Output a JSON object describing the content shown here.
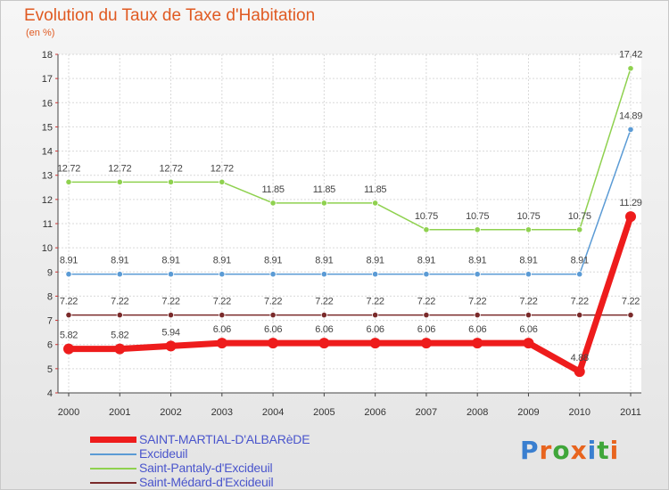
{
  "title": "Evolution du Taux de Taxe d'Habitation",
  "unit": "(en %)",
  "logo": {
    "text": "Proxiti",
    "letter_colors": [
      "#3a7fd0",
      "#e8641e",
      "#3fa63a",
      "#e8641e",
      "#3a7fd0",
      "#3fa63a",
      "#e8641e"
    ]
  },
  "chart_data": {
    "type": "line",
    "title": "Evolution du Taux de Taxe d'Habitation",
    "ylabel": "(en %)",
    "xlabel": "",
    "categories": [
      "2000",
      "2001",
      "2002",
      "2003",
      "2004",
      "2005",
      "2006",
      "2007",
      "2008",
      "2009",
      "2010",
      "2011"
    ],
    "ylim": [
      4,
      18
    ],
    "yticks": [
      4,
      5,
      6,
      7,
      8,
      9,
      10,
      11,
      12,
      13,
      14,
      15,
      16,
      17,
      18
    ],
    "grid": true,
    "series": [
      {
        "name": "Saint-Médard-d'Excideuil",
        "color": "#7a2a2a",
        "values": [
          7.22,
          7.22,
          7.22,
          7.22,
          7.22,
          7.22,
          7.22,
          7.22,
          7.22,
          7.22,
          7.22,
          7.22
        ],
        "labels": [
          "7.22",
          "7.22",
          "7.22",
          "7.22",
          "7.22",
          "7.22",
          "7.22",
          "7.22",
          "7.22",
          "7.22",
          "7.22",
          "7.22"
        ]
      },
      {
        "name": "Excideuil",
        "color": "#5b9bd5",
        "values": [
          8.91,
          8.91,
          8.91,
          8.91,
          8.91,
          8.91,
          8.91,
          8.91,
          8.91,
          8.91,
          8.91,
          14.89
        ],
        "labels": [
          "8.91",
          "8.91",
          "8.91",
          "8.91",
          "8.91",
          "8.91",
          "8.91",
          "8.91",
          "8.91",
          "8.91",
          "8.91",
          "14.89"
        ]
      },
      {
        "name": "Saint-Pantaly-d'Excideuil",
        "color": "#8fd14f",
        "values": [
          12.72,
          12.72,
          12.72,
          12.72,
          11.85,
          11.85,
          11.85,
          10.75,
          10.75,
          10.75,
          10.75,
          17.42
        ],
        "labels": [
          "12.72",
          "12.72",
          "12.72",
          "12.72",
          "11.85",
          "11.85",
          "11.85",
          "10.75",
          "10.75",
          "10.75",
          "10.75",
          "17.42"
        ]
      },
      {
        "name": "SAINT-MARTIAL-D'ALBARèDE",
        "color": "#ee1c1c",
        "values": [
          5.82,
          5.82,
          5.94,
          6.06,
          6.06,
          6.06,
          6.06,
          6.06,
          6.06,
          6.06,
          4.88,
          11.29
        ],
        "labels": [
          "5.82",
          "5.82",
          "5.94",
          "6.06",
          "6.06",
          "6.06",
          "6.06",
          "6.06",
          "6.06",
          "6.06",
          "4.88",
          "11.29"
        ]
      }
    ],
    "legend_order": [
      "SAINT-MARTIAL-D'ALBARèDE",
      "Excideuil",
      "Saint-Pantaly-d'Excideuil",
      "Saint-Médard-d'Excideuil"
    ],
    "legend_position": "bottom-left"
  }
}
